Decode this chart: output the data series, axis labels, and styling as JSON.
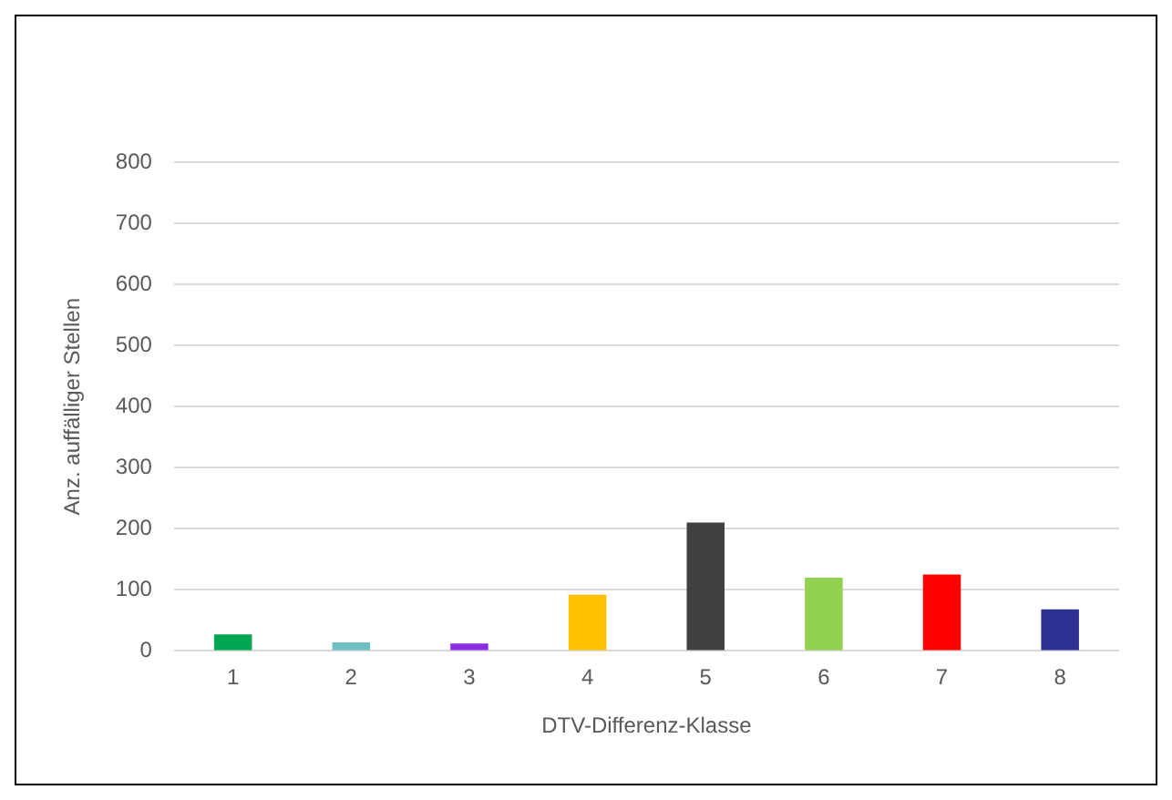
{
  "chart_data": {
    "type": "bar",
    "xlabel": "DTV-Differenz-Klasse",
    "ylabel": "Anz. auffälliger Stellen",
    "categories": [
      "1",
      "2",
      "3",
      "4",
      "5",
      "6",
      "7",
      "8"
    ],
    "values": [
      27,
      14,
      12,
      92,
      210,
      120,
      125,
      68
    ],
    "colors": [
      "#00a651",
      "#6cbfc4",
      "#8b2be2",
      "#ffc000",
      "#404040",
      "#92d050",
      "#ff0000",
      "#2e3192"
    ],
    "ylim": [
      0,
      800
    ],
    "yticks": [
      0,
      100,
      200,
      300,
      400,
      500,
      600,
      700,
      800
    ],
    "grid": "y"
  }
}
